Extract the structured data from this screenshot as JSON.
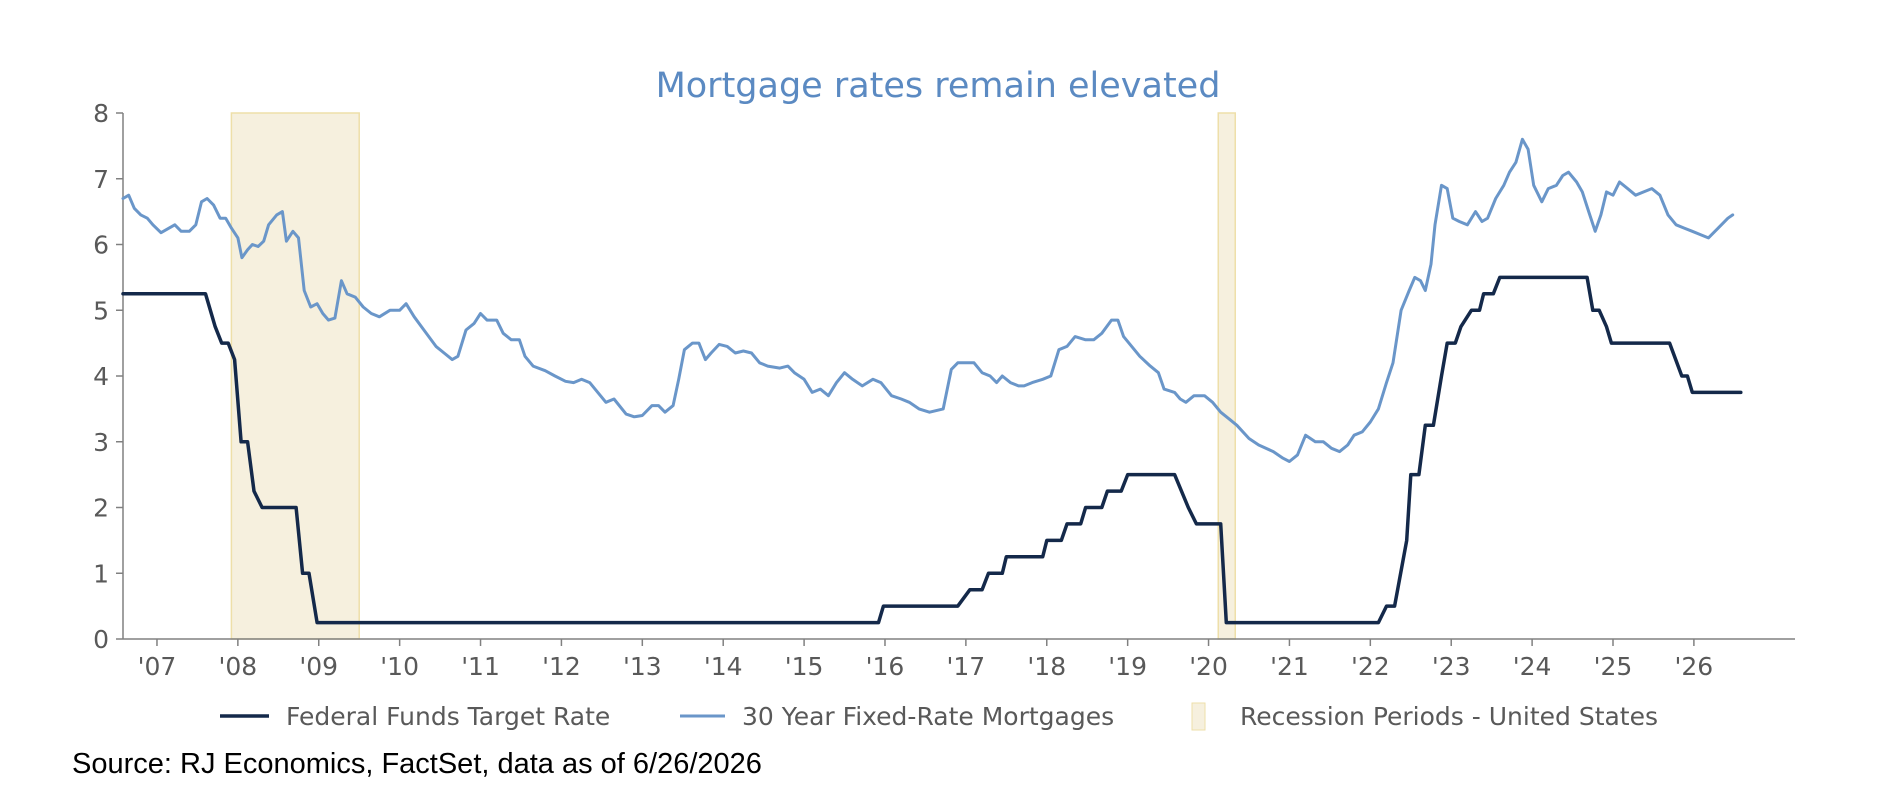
{
  "source_note": "Source: RJ Economics, FactSet, data as of 6/26/2026",
  "colors": {
    "fed_funds": "#14294a",
    "mortgage": "#6a96c9",
    "recession": "#f6f0de",
    "recession_border": "#eedfa9",
    "title": "#5b8ac2",
    "axis": "#808080"
  },
  "chart_data": {
    "type": "line",
    "title": "Mortgage rates remain elevated",
    "xlabel": "",
    "ylabel": "",
    "ylim": [
      0,
      8
    ],
    "xlim": [
      2006.58,
      2027.25
    ],
    "yticks": [
      "0",
      "1",
      "2",
      "3",
      "4",
      "5",
      "6",
      "7",
      "8"
    ],
    "xticks": [
      "'07",
      "'08",
      "'09",
      "'10",
      "'11",
      "'12",
      "'13",
      "'14",
      "'15",
      "'16",
      "'17",
      "'18",
      "'19",
      "'20",
      "'21",
      "'22",
      "'23",
      "'24",
      "'25",
      "'26"
    ],
    "grid": false,
    "legend_position": "bottom",
    "legend": [
      "Federal Funds Target Rate",
      "30 Year Fixed-Rate Mortgages",
      "Recession Periods - United States"
    ],
    "recessions": [
      {
        "start": 2007.92,
        "end": 2009.5
      },
      {
        "start": 2020.12,
        "end": 2020.33
      }
    ],
    "series": [
      {
        "name": "Federal Funds Target Rate",
        "points": [
          [
            2006.58,
            5.25
          ],
          [
            2007.6,
            5.25
          ],
          [
            2007.72,
            4.75
          ],
          [
            2007.8,
            4.5
          ],
          [
            2007.88,
            4.5
          ],
          [
            2007.96,
            4.25
          ],
          [
            2008.04,
            3.0
          ],
          [
            2008.12,
            3.0
          ],
          [
            2008.2,
            2.25
          ],
          [
            2008.3,
            2.0
          ],
          [
            2008.72,
            2.0
          ],
          [
            2008.8,
            1.0
          ],
          [
            2008.88,
            1.0
          ],
          [
            2008.98,
            0.25
          ],
          [
            2015.92,
            0.25
          ],
          [
            2015.98,
            0.5
          ],
          [
            2016.9,
            0.5
          ],
          [
            2017.05,
            0.75
          ],
          [
            2017.2,
            0.75
          ],
          [
            2017.28,
            1.0
          ],
          [
            2017.45,
            1.0
          ],
          [
            2017.5,
            1.25
          ],
          [
            2017.95,
            1.25
          ],
          [
            2018.0,
            1.5
          ],
          [
            2018.18,
            1.5
          ],
          [
            2018.25,
            1.75
          ],
          [
            2018.42,
            1.75
          ],
          [
            2018.48,
            2.0
          ],
          [
            2018.68,
            2.0
          ],
          [
            2018.75,
            2.25
          ],
          [
            2018.92,
            2.25
          ],
          [
            2019.0,
            2.5
          ],
          [
            2019.58,
            2.5
          ],
          [
            2019.75,
            2.0
          ],
          [
            2019.85,
            1.75
          ],
          [
            2020.15,
            1.75
          ],
          [
            2020.22,
            0.25
          ],
          [
            2022.1,
            0.25
          ],
          [
            2022.2,
            0.5
          ],
          [
            2022.3,
            0.5
          ],
          [
            2022.45,
            1.5
          ],
          [
            2022.5,
            2.5
          ],
          [
            2022.6,
            2.5
          ],
          [
            2022.68,
            3.25
          ],
          [
            2022.78,
            3.25
          ],
          [
            2022.88,
            4.0
          ],
          [
            2022.95,
            4.5
          ],
          [
            2023.05,
            4.5
          ],
          [
            2023.12,
            4.75
          ],
          [
            2023.25,
            5.0
          ],
          [
            2023.35,
            5.0
          ],
          [
            2023.4,
            5.25
          ],
          [
            2023.52,
            5.25
          ],
          [
            2023.6,
            5.5
          ],
          [
            2024.68,
            5.5
          ],
          [
            2024.75,
            5.0
          ],
          [
            2024.83,
            5.0
          ],
          [
            2024.92,
            4.75
          ],
          [
            2024.98,
            4.5
          ],
          [
            2025.7,
            4.5
          ],
          [
            2025.85,
            4.0
          ],
          [
            2025.92,
            4.0
          ],
          [
            2025.98,
            3.75
          ],
          [
            2026.58,
            3.75
          ]
        ]
      },
      {
        "name": "30 Year Fixed-Rate Mortgages",
        "points": [
          [
            2006.58,
            6.7
          ],
          [
            2006.65,
            6.75
          ],
          [
            2006.72,
            6.55
          ],
          [
            2006.8,
            6.45
          ],
          [
            2006.88,
            6.4
          ],
          [
            2006.95,
            6.3
          ],
          [
            2007.05,
            6.18
          ],
          [
            2007.15,
            6.25
          ],
          [
            2007.22,
            6.3
          ],
          [
            2007.3,
            6.2
          ],
          [
            2007.4,
            6.2
          ],
          [
            2007.48,
            6.3
          ],
          [
            2007.55,
            6.65
          ],
          [
            2007.62,
            6.7
          ],
          [
            2007.7,
            6.6
          ],
          [
            2007.78,
            6.4
          ],
          [
            2007.85,
            6.4
          ],
          [
            2007.92,
            6.25
          ],
          [
            2008.0,
            6.1
          ],
          [
            2008.05,
            5.8
          ],
          [
            2008.12,
            5.92
          ],
          [
            2008.18,
            6.0
          ],
          [
            2008.25,
            5.97
          ],
          [
            2008.32,
            6.05
          ],
          [
            2008.38,
            6.3
          ],
          [
            2008.48,
            6.45
          ],
          [
            2008.55,
            6.5
          ],
          [
            2008.6,
            6.05
          ],
          [
            2008.68,
            6.2
          ],
          [
            2008.75,
            6.1
          ],
          [
            2008.82,
            5.3
          ],
          [
            2008.9,
            5.05
          ],
          [
            2008.98,
            5.1
          ],
          [
            2009.05,
            4.95
          ],
          [
            2009.12,
            4.85
          ],
          [
            2009.2,
            4.88
          ],
          [
            2009.28,
            5.45
          ],
          [
            2009.35,
            5.25
          ],
          [
            2009.45,
            5.2
          ],
          [
            2009.55,
            5.05
          ],
          [
            2009.65,
            4.95
          ],
          [
            2009.75,
            4.9
          ],
          [
            2009.88,
            5.0
          ],
          [
            2010.0,
            5.0
          ],
          [
            2010.08,
            5.1
          ],
          [
            2010.18,
            4.9
          ],
          [
            2010.3,
            4.7
          ],
          [
            2010.45,
            4.45
          ],
          [
            2010.55,
            4.35
          ],
          [
            2010.65,
            4.25
          ],
          [
            2010.72,
            4.3
          ],
          [
            2010.82,
            4.7
          ],
          [
            2010.92,
            4.8
          ],
          [
            2011.0,
            4.95
          ],
          [
            2011.08,
            4.85
          ],
          [
            2011.2,
            4.85
          ],
          [
            2011.28,
            4.65
          ],
          [
            2011.38,
            4.55
          ],
          [
            2011.48,
            4.55
          ],
          [
            2011.55,
            4.3
          ],
          [
            2011.65,
            4.15
          ],
          [
            2011.8,
            4.08
          ],
          [
            2011.92,
            4.0
          ],
          [
            2012.05,
            3.92
          ],
          [
            2012.15,
            3.9
          ],
          [
            2012.25,
            3.95
          ],
          [
            2012.35,
            3.9
          ],
          [
            2012.45,
            3.75
          ],
          [
            2012.55,
            3.6
          ],
          [
            2012.65,
            3.65
          ],
          [
            2012.8,
            3.42
          ],
          [
            2012.9,
            3.38
          ],
          [
            2013.0,
            3.4
          ],
          [
            2013.12,
            3.55
          ],
          [
            2013.2,
            3.55
          ],
          [
            2013.28,
            3.45
          ],
          [
            2013.38,
            3.55
          ],
          [
            2013.45,
            3.95
          ],
          [
            2013.52,
            4.4
          ],
          [
            2013.62,
            4.5
          ],
          [
            2013.7,
            4.5
          ],
          [
            2013.78,
            4.25
          ],
          [
            2013.85,
            4.35
          ],
          [
            2013.95,
            4.48
          ],
          [
            2014.05,
            4.45
          ],
          [
            2014.15,
            4.35
          ],
          [
            2014.25,
            4.38
          ],
          [
            2014.35,
            4.35
          ],
          [
            2014.45,
            4.2
          ],
          [
            2014.55,
            4.15
          ],
          [
            2014.7,
            4.12
          ],
          [
            2014.8,
            4.15
          ],
          [
            2014.88,
            4.05
          ],
          [
            2015.0,
            3.95
          ],
          [
            2015.1,
            3.75
          ],
          [
            2015.2,
            3.8
          ],
          [
            2015.3,
            3.7
          ],
          [
            2015.4,
            3.9
          ],
          [
            2015.5,
            4.05
          ],
          [
            2015.6,
            3.95
          ],
          [
            2015.72,
            3.85
          ],
          [
            2015.85,
            3.95
          ],
          [
            2015.95,
            3.9
          ],
          [
            2016.08,
            3.7
          ],
          [
            2016.2,
            3.65
          ],
          [
            2016.3,
            3.6
          ],
          [
            2016.42,
            3.5
          ],
          [
            2016.55,
            3.45
          ],
          [
            2016.72,
            3.5
          ],
          [
            2016.82,
            4.1
          ],
          [
            2016.9,
            4.2
          ],
          [
            2017.0,
            4.2
          ],
          [
            2017.1,
            4.2
          ],
          [
            2017.2,
            4.05
          ],
          [
            2017.3,
            4.0
          ],
          [
            2017.38,
            3.9
          ],
          [
            2017.45,
            4.0
          ],
          [
            2017.55,
            3.9
          ],
          [
            2017.65,
            3.85
          ],
          [
            2017.72,
            3.85
          ],
          [
            2017.82,
            3.9
          ],
          [
            2017.95,
            3.95
          ],
          [
            2018.05,
            4.0
          ],
          [
            2018.15,
            4.4
          ],
          [
            2018.25,
            4.45
          ],
          [
            2018.35,
            4.6
          ],
          [
            2018.48,
            4.55
          ],
          [
            2018.58,
            4.55
          ],
          [
            2018.68,
            4.65
          ],
          [
            2018.8,
            4.85
          ],
          [
            2018.88,
            4.85
          ],
          [
            2018.95,
            4.6
          ],
          [
            2019.05,
            4.45
          ],
          [
            2019.15,
            4.3
          ],
          [
            2019.28,
            4.15
          ],
          [
            2019.38,
            4.05
          ],
          [
            2019.45,
            3.8
          ],
          [
            2019.58,
            3.75
          ],
          [
            2019.65,
            3.65
          ],
          [
            2019.72,
            3.6
          ],
          [
            2019.82,
            3.7
          ],
          [
            2019.95,
            3.7
          ],
          [
            2020.05,
            3.6
          ],
          [
            2020.15,
            3.45
          ],
          [
            2020.25,
            3.35
          ],
          [
            2020.35,
            3.25
          ],
          [
            2020.5,
            3.05
          ],
          [
            2020.62,
            2.95
          ],
          [
            2020.8,
            2.85
          ],
          [
            2020.92,
            2.75
          ],
          [
            2021.0,
            2.7
          ],
          [
            2021.1,
            2.8
          ],
          [
            2021.2,
            3.1
          ],
          [
            2021.32,
            3.0
          ],
          [
            2021.42,
            3.0
          ],
          [
            2021.52,
            2.9
          ],
          [
            2021.62,
            2.85
          ],
          [
            2021.72,
            2.95
          ],
          [
            2021.8,
            3.1
          ],
          [
            2021.9,
            3.15
          ],
          [
            2022.0,
            3.3
          ],
          [
            2022.1,
            3.5
          ],
          [
            2022.2,
            3.9
          ],
          [
            2022.28,
            4.2
          ],
          [
            2022.38,
            5.0
          ],
          [
            2022.48,
            5.3
          ],
          [
            2022.55,
            5.5
          ],
          [
            2022.62,
            5.45
          ],
          [
            2022.68,
            5.3
          ],
          [
            2022.75,
            5.7
          ],
          [
            2022.8,
            6.3
          ],
          [
            2022.88,
            6.9
          ],
          [
            2022.95,
            6.85
          ],
          [
            2023.02,
            6.4
          ],
          [
            2023.1,
            6.35
          ],
          [
            2023.2,
            6.3
          ],
          [
            2023.3,
            6.5
          ],
          [
            2023.38,
            6.35
          ],
          [
            2023.45,
            6.4
          ],
          [
            2023.55,
            6.7
          ],
          [
            2023.65,
            6.9
          ],
          [
            2023.72,
            7.1
          ],
          [
            2023.8,
            7.25
          ],
          [
            2023.88,
            7.6
          ],
          [
            2023.95,
            7.45
          ],
          [
            2024.02,
            6.9
          ],
          [
            2024.12,
            6.65
          ],
          [
            2024.2,
            6.85
          ],
          [
            2024.3,
            6.9
          ],
          [
            2024.38,
            7.05
          ],
          [
            2024.45,
            7.1
          ],
          [
            2024.55,
            6.95
          ],
          [
            2024.62,
            6.8
          ],
          [
            2024.7,
            6.5
          ],
          [
            2024.78,
            6.2
          ],
          [
            2024.85,
            6.45
          ],
          [
            2024.92,
            6.8
          ],
          [
            2025.0,
            6.75
          ],
          [
            2025.08,
            6.95
          ],
          [
            2025.18,
            6.85
          ],
          [
            2025.28,
            6.75
          ],
          [
            2025.38,
            6.8
          ],
          [
            2025.48,
            6.85
          ],
          [
            2025.58,
            6.75
          ],
          [
            2025.68,
            6.45
          ],
          [
            2025.78,
            6.3
          ],
          [
            2025.88,
            6.25
          ],
          [
            2025.98,
            6.2
          ],
          [
            2026.08,
            6.15
          ],
          [
            2026.18,
            6.1
          ],
          [
            2026.3,
            6.25
          ],
          [
            2026.42,
            6.4
          ],
          [
            2026.48,
            6.45
          ]
        ]
      }
    ]
  }
}
